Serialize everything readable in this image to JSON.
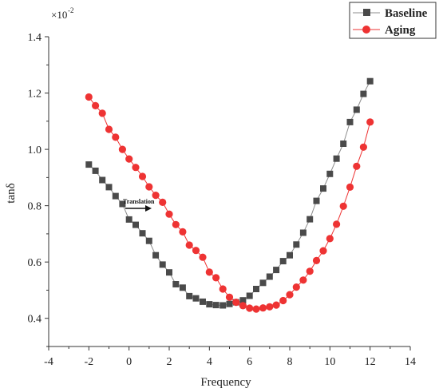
{
  "chart_data": {
    "type": "line",
    "xlabel": "Frequency",
    "ylabel": "tanδ",
    "xlim": [
      -4,
      14
    ],
    "ylim": [
      0.3,
      1.4
    ],
    "x_ticks": [
      "-4",
      "-2",
      "0",
      "2",
      "4",
      "6",
      "8",
      "10",
      "12",
      "14"
    ],
    "y_ticks": [
      "0.4",
      "0.6",
      "0.8",
      "1.0",
      "1.2",
      "1.4"
    ],
    "y_multiplier": {
      "base": "×10",
      "exponent": "-2"
    },
    "legend_position": "top-right",
    "grid": false,
    "annotation": {
      "text": "Translation",
      "arrow": "right"
    },
    "series": [
      {
        "name": "Baseline",
        "marker": "square",
        "color": "#4a4a4a",
        "line_color": "#8c8c8c",
        "x": [
          -2.0,
          -1.67,
          -1.33,
          -1.0,
          -0.67,
          -0.33,
          0.0,
          0.33,
          0.67,
          1.0,
          1.33,
          1.67,
          2.0,
          2.33,
          2.67,
          3.0,
          3.33,
          3.67,
          4.0,
          4.33,
          4.67,
          5.0,
          5.33,
          5.67,
          6.0,
          6.33,
          6.67,
          7.0,
          7.33,
          7.67,
          8.0,
          8.33,
          8.67,
          9.0,
          9.33,
          9.67,
          10.0,
          10.33,
          10.67,
          11.0,
          11.33,
          11.67,
          12.0
        ],
        "y": [
          0.946,
          0.924,
          0.891,
          0.866,
          0.834,
          0.806,
          0.751,
          0.732,
          0.702,
          0.675,
          0.624,
          0.591,
          0.563,
          0.521,
          0.509,
          0.479,
          0.471,
          0.459,
          0.45,
          0.447,
          0.446,
          0.451,
          0.457,
          0.464,
          0.48,
          0.504,
          0.526,
          0.548,
          0.572,
          0.603,
          0.624,
          0.662,
          0.704,
          0.752,
          0.817,
          0.861,
          0.913,
          0.967,
          1.02,
          1.097,
          1.141,
          1.197,
          1.242
        ]
      },
      {
        "name": "Aging",
        "marker": "circle",
        "color": "#ee3333",
        "line_color": "#ee3333",
        "x": [
          -2.0,
          -1.67,
          -1.33,
          -1.0,
          -0.67,
          -0.33,
          0.0,
          0.33,
          0.67,
          1.0,
          1.33,
          1.67,
          2.0,
          2.33,
          2.67,
          3.0,
          3.33,
          3.67,
          4.0,
          4.33,
          4.67,
          5.0,
          5.33,
          5.67,
          6.0,
          6.33,
          6.67,
          7.0,
          7.33,
          7.67,
          8.0,
          8.33,
          8.67,
          9.0,
          9.33,
          9.67,
          10.0,
          10.33,
          10.67,
          11.0,
          11.33,
          11.67,
          12.0
        ],
        "y": [
          1.186,
          1.155,
          1.128,
          1.071,
          1.043,
          1.0,
          0.966,
          0.936,
          0.904,
          0.867,
          0.837,
          0.812,
          0.77,
          0.733,
          0.707,
          0.66,
          0.641,
          0.617,
          0.564,
          0.544,
          0.504,
          0.475,
          0.457,
          0.445,
          0.436,
          0.433,
          0.437,
          0.441,
          0.447,
          0.463,
          0.484,
          0.511,
          0.536,
          0.567,
          0.605,
          0.64,
          0.683,
          0.734,
          0.798,
          0.866,
          0.94,
          1.008,
          1.097
        ]
      }
    ]
  }
}
